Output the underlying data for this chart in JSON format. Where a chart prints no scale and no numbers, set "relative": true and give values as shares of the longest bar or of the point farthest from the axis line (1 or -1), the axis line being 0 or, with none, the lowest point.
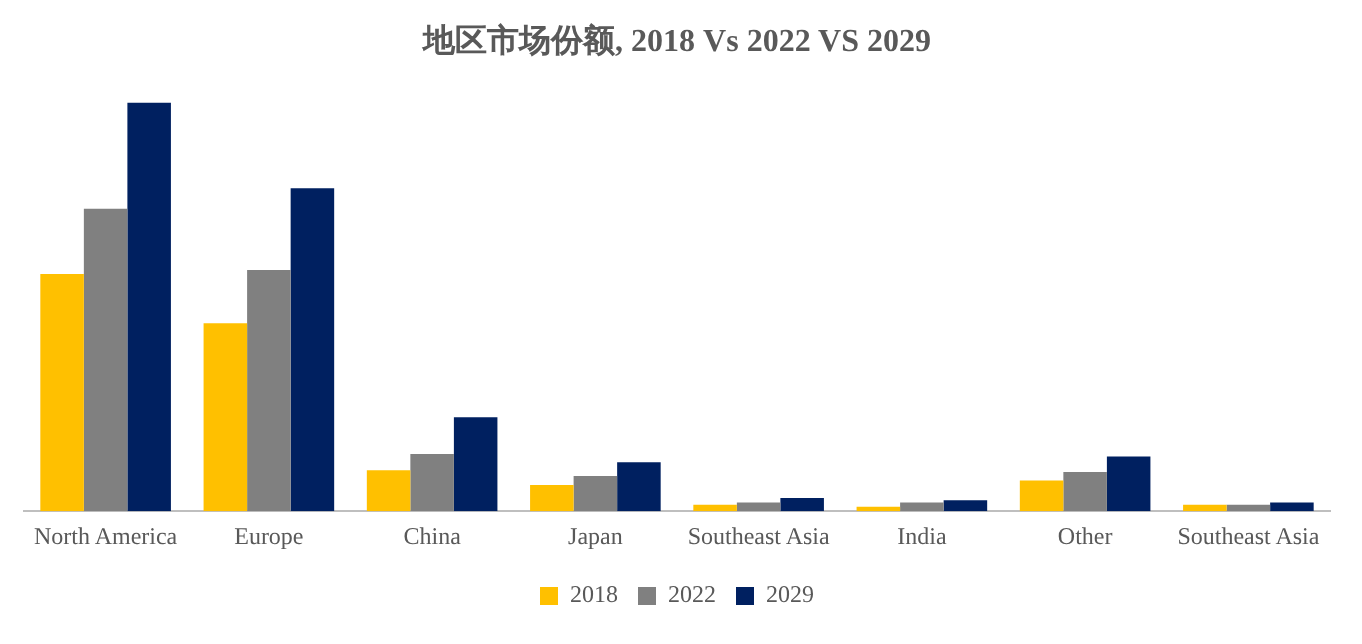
{
  "chart_data": {
    "type": "bar",
    "title": "地区市场份额, 2018 Vs 2022 VS 2029",
    "relative": true,
    "grid": false,
    "legend": "bottom",
    "categories": [
      "North America",
      "Europe",
      "China",
      "Japan",
      "Southeast Asia",
      "India",
      "Other",
      "Southeast Asia"
    ],
    "series": [
      {
        "name": "2018",
        "color": "#ffc000",
        "values": [
          0.58,
          0.46,
          0.1,
          0.064,
          0.016,
          0.011,
          0.075,
          0.016
        ]
      },
      {
        "name": "2022",
        "color": "#808080",
        "values": [
          0.74,
          0.59,
          0.14,
          0.086,
          0.021,
          0.021,
          0.096,
          0.016
        ]
      },
      {
        "name": "2029",
        "color": "#002060",
        "values": [
          1,
          0.79,
          0.23,
          0.12,
          0.032,
          0.027,
          0.134,
          0.021
        ]
      }
    ]
  }
}
